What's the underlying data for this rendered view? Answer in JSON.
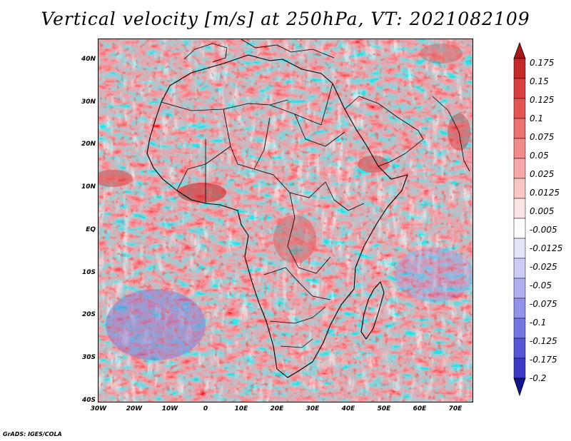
{
  "title": "Vertical velocity [m/s] at 250hPa, VT: 2021082109",
  "footer": "GrADS: IGES/COLA",
  "map": {
    "projection": "lat-lon",
    "lon_range": [
      -30,
      75
    ],
    "lat_range": [
      -40,
      45
    ],
    "lat_ticks": [
      {
        "value": 40,
        "label": "40N"
      },
      {
        "value": 30,
        "label": "30N"
      },
      {
        "value": 20,
        "label": "20N"
      },
      {
        "value": 10,
        "label": "10N"
      },
      {
        "value": 0,
        "label": "EQ"
      },
      {
        "value": -10,
        "label": "10S"
      },
      {
        "value": -20,
        "label": "20S"
      },
      {
        "value": -30,
        "label": "30S"
      },
      {
        "value": -40,
        "label": "40S"
      }
    ],
    "lon_ticks": [
      {
        "value": -30,
        "label": "30W"
      },
      {
        "value": -20,
        "label": "20W"
      },
      {
        "value": -10,
        "label": "10W"
      },
      {
        "value": 0,
        "label": "0"
      },
      {
        "value": 10,
        "label": "10E"
      },
      {
        "value": 20,
        "label": "20E"
      },
      {
        "value": 30,
        "label": "30E"
      },
      {
        "value": 40,
        "label": "40E"
      },
      {
        "value": 50,
        "label": "50E"
      },
      {
        "value": 60,
        "label": "60E"
      },
      {
        "value": 70,
        "label": "70E"
      }
    ]
  },
  "colorbar": {
    "labels": [
      "0.175",
      "0.15",
      "0.125",
      "0.1",
      "0.075",
      "0.05",
      "0.025",
      "0.0125",
      "0.005",
      "-0.005",
      "-0.0125",
      "-0.025",
      "-0.05",
      "-0.075",
      "-0.1",
      "-0.125",
      "-0.175",
      "-0.2"
    ],
    "colors": [
      "#a81818",
      "#c42a2a",
      "#d93f3f",
      "#e35555",
      "#ec7070",
      "#f28b8b",
      "#f6a8a8",
      "#f9c6c6",
      "#fce3e3",
      "#ffffff",
      "#e4e4fb",
      "#ccccf6",
      "#b0b0f0",
      "#9393ea",
      "#7575e2",
      "#5656d6",
      "#3a3ac4",
      "#2323ae",
      "#14148c"
    ]
  }
}
